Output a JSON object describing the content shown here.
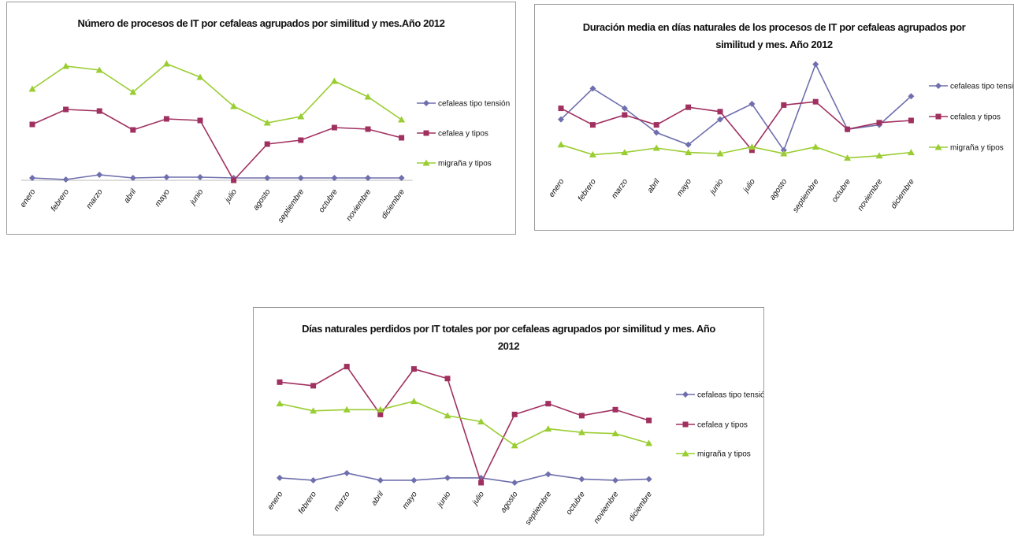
{
  "chart_data": [
    {
      "type": "line",
      "title": "Número de procesos de IT por cefaleas agrupados por similitud y mes.Año 2012",
      "categories": [
        "enero",
        "febrero",
        "marzo",
        "abril",
        "mayo",
        "junio",
        "julio",
        "agosto",
        "septiembre",
        "octubre",
        "noviembre",
        "diciembre"
      ],
      "ylim": [
        0,
        100
      ],
      "series": [
        {
          "name": "cefaleas tipo tensión",
          "color": "#6f6fae",
          "marker": "diamond",
          "values": [
            1.5,
            0.5,
            3.5,
            1.5,
            2,
            2,
            1.5,
            1.5,
            1.5,
            1.5,
            1.5,
            1.5
          ]
        },
        {
          "name": "cefalea y tipos",
          "color": "#a0305f",
          "marker": "square",
          "values": [
            35.5,
            45,
            44,
            32,
            39,
            38,
            0,
            23,
            25.5,
            33.5,
            32.5,
            27
          ]
        },
        {
          "name": "migraña y tipos",
          "color": "#9acd32",
          "marker": "triangle",
          "values": [
            58,
            72.5,
            70,
            56,
            74,
            65.5,
            47,
            36.5,
            40.5,
            63,
            53,
            38.5
          ]
        }
      ]
    },
    {
      "type": "line",
      "title": "Duración media en días naturales de los procesos de IT por cefaleas agrupados por similitud y mes. Año 2012",
      "categories": [
        "enero",
        "febrero",
        "marzo",
        "abril",
        "mayo",
        "junio",
        "julio",
        "agosto",
        "septiembre",
        "octubre",
        "noviembre",
        "diciembre"
      ],
      "ylim": [
        0,
        100
      ],
      "series": [
        {
          "name": "cefaleas tipo tensión",
          "color": "#6f6fae",
          "marker": "diamond",
          "values": [
            46,
            74,
            56,
            34,
            23,
            46,
            60,
            18,
            96,
            37,
            41,
            67
          ]
        },
        {
          "name": "cefalea y tipos",
          "color": "#a0305f",
          "marker": "square",
          "values": [
            56,
            41,
            50,
            41,
            57,
            53,
            18,
            59,
            62,
            37,
            43,
            45
          ]
        },
        {
          "name": "migraña y tipos",
          "color": "#9acd32",
          "marker": "triangle",
          "values": [
            23,
            14,
            16,
            20,
            16,
            15,
            21,
            15,
            21,
            11,
            13,
            16
          ]
        }
      ]
    },
    {
      "type": "line",
      "title": "Días naturales perdidos por IT totales por por cefaleas agrupados por similitud y mes. Año 2012",
      "categories": [
        "enero",
        "febrero",
        "marzo",
        "abril",
        "mayo",
        "junio",
        "julio",
        "agosto",
        "septiembre",
        "octubre",
        "noviembre",
        "diciembre"
      ],
      "ylim": [
        0,
        100
      ],
      "series": [
        {
          "name": "cefaleas tipo tensión",
          "color": "#6f6fae",
          "marker": "diamond",
          "values": [
            4,
            2,
            8,
            2,
            2,
            4,
            4,
            0,
            7,
            3,
            2,
            3
          ]
        },
        {
          "name": "cefalea y tipos",
          "color": "#a0305f",
          "marker": "square",
          "values": [
            84,
            81,
            97,
            57,
            95,
            87,
            0,
            57,
            66,
            56,
            61,
            52
          ]
        },
        {
          "name": "migraña y tipos",
          "color": "#9acd32",
          "marker": "triangle",
          "values": [
            66,
            60,
            61,
            61,
            68,
            56,
            51,
            31,
            45,
            42,
            41,
            33
          ]
        }
      ]
    }
  ]
}
